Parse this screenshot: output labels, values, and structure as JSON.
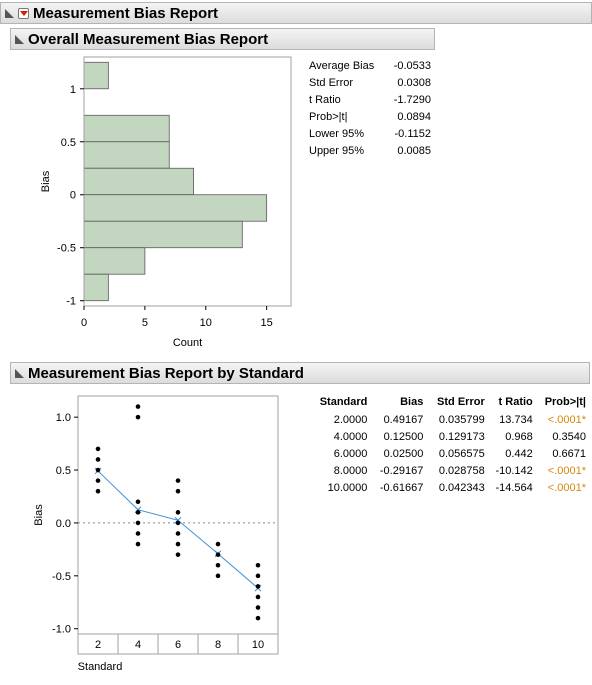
{
  "report": {
    "title": "Measurement Bias Report"
  },
  "overall": {
    "title": "Overall Measurement Bias Report",
    "stats": [
      {
        "label": "Average Bias",
        "value": "-0.0533"
      },
      {
        "label": "Std Error",
        "value": "0.0308"
      },
      {
        "label": "t Ratio",
        "value": "-1.7290"
      },
      {
        "label": "Prob>|t|",
        "value": "0.0894"
      },
      {
        "label": "Lower 95%",
        "value": "-0.1152"
      },
      {
        "label": "Upper 95%",
        "value": "0.0085"
      }
    ]
  },
  "by_standard": {
    "title": "Measurement Bias Report by Standard",
    "columns": [
      "Standard",
      "Bias",
      "Std Error",
      "t Ratio",
      "Prob>|t|"
    ],
    "rows": [
      {
        "standard": "2.0000",
        "bias": "0.49167",
        "std_error": "0.035799",
        "t_ratio": "13.734",
        "prob": "<.0001*",
        "significant": true
      },
      {
        "standard": "4.0000",
        "bias": "0.12500",
        "std_error": "0.129173",
        "t_ratio": "0.968",
        "prob": "0.3540",
        "significant": false
      },
      {
        "standard": "6.0000",
        "bias": "0.02500",
        "std_error": "0.056575",
        "t_ratio": "0.442",
        "prob": "0.6671",
        "significant": false
      },
      {
        "standard": "8.0000",
        "bias": "-0.29167",
        "std_error": "0.028758",
        "t_ratio": "-10.142",
        "prob": "<.0001*",
        "significant": true
      },
      {
        "standard": "10.0000",
        "bias": "-0.61667",
        "std_error": "0.042343",
        "t_ratio": "-14.564",
        "prob": "<.0001*",
        "significant": true
      }
    ]
  },
  "colors": {
    "significant": "#d8860e",
    "bar_fill": "#c3d6c0",
    "mean_line": "#3b8fd8"
  },
  "chart_data": [
    {
      "type": "bar",
      "orientation": "horizontal",
      "xlabel": "Count",
      "ylabel": "Bias",
      "bins": [
        {
          "from": 1.0,
          "to": 1.25,
          "count": 2
        },
        {
          "from": 0.5,
          "to": 0.75,
          "count": 7
        },
        {
          "from": 0.25,
          "to": 0.5,
          "count": 7
        },
        {
          "from": 0.0,
          "to": 0.25,
          "count": 9
        },
        {
          "from": -0.25,
          "to": 0.0,
          "count": 15
        },
        {
          "from": -0.5,
          "to": -0.25,
          "count": 13
        },
        {
          "from": -0.75,
          "to": -0.5,
          "count": 5
        },
        {
          "from": -1.0,
          "to": -0.75,
          "count": 2
        }
      ],
      "xlim": [
        0,
        17
      ],
      "ylim": [
        -1.05,
        1.3
      ],
      "xticks": [
        "0",
        "5",
        "10",
        "15"
      ],
      "yticks": [
        "1",
        "0.5",
        "0",
        "-0.5",
        "-1"
      ]
    },
    {
      "type": "scatter",
      "xlabel": "Standard",
      "ylabel": "Bias",
      "categories": [
        "2",
        "4",
        "6",
        "8",
        "10"
      ],
      "points": {
        "2": [
          0.7,
          0.6,
          0.5,
          0.4,
          0.3
        ],
        "4": [
          1.1,
          1.0,
          0.2,
          0.1,
          0.0,
          -0.1,
          -0.2
        ],
        "6": [
          0.4,
          0.3,
          0.1,
          0.0,
          -0.1,
          -0.2,
          -0.3
        ],
        "8": [
          -0.2,
          -0.3,
          -0.4,
          -0.5
        ],
        "10": [
          -0.4,
          -0.5,
          -0.6,
          -0.7,
          -0.8,
          -0.9
        ]
      },
      "means": [
        0.49167,
        0.125,
        0.025,
        -0.29167,
        -0.61667
      ],
      "reference_line": 0,
      "ylim": [
        -1.05,
        1.2
      ],
      "yticks": [
        "1.0",
        "0.5",
        "0.0",
        "-0.5",
        "-1.0"
      ]
    }
  ]
}
